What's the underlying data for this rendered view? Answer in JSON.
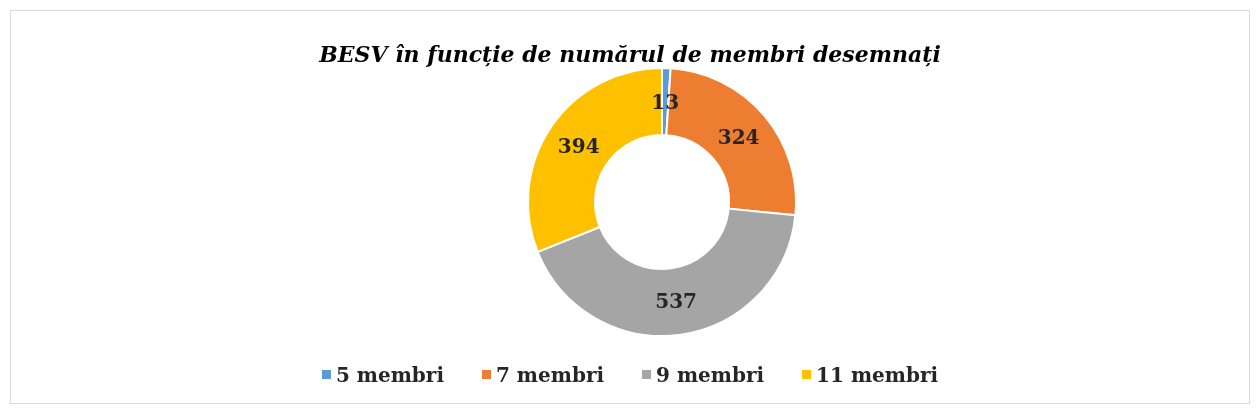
{
  "chart_data": {
    "type": "donut",
    "title": "BESV în funcție de numărul de membri desemnați",
    "categories": [
      "5 membri",
      "7 membri",
      "9 membri",
      "11 membri"
    ],
    "values": [
      13,
      324,
      537,
      394
    ],
    "colors": [
      "#5b9bd5",
      "#ed7d31",
      "#a5a5a5",
      "#ffc000"
    ],
    "data_labels": true,
    "legend": "bottom"
  }
}
